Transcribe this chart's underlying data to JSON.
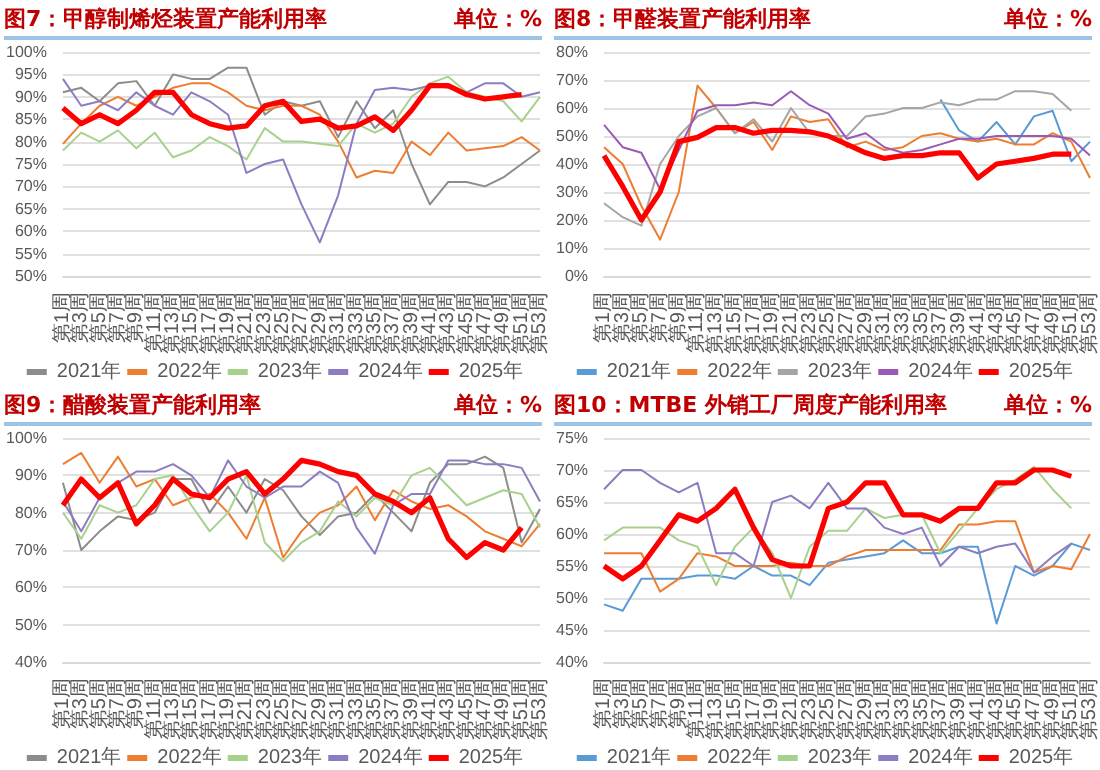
{
  "chart_data": [
    {
      "type": "line",
      "title": "图7：甲醇制烯烃装置产能利用率",
      "annotations": [
        "单位：%"
      ],
      "categories": [
        "第1周",
        "第3周",
        "第5周",
        "第7周",
        "第9周",
        "第11周",
        "第13周",
        "第15周",
        "第17周",
        "第19周",
        "第21周",
        "第23周",
        "第25周",
        "第27周",
        "第29周",
        "第31周",
        "第33周",
        "第35周",
        "第37周",
        "第39周",
        "第41周",
        "第43周",
        "第45周",
        "第47周",
        "第49周",
        "第51周",
        "第53周"
      ],
      "series": [
        {
          "name": "2021年",
          "color": "#8c8c8c",
          "values": [
            91,
            92,
            89,
            93,
            93.5,
            88,
            95,
            94,
            94,
            96.5,
            96.5,
            86,
            89,
            88,
            89,
            81,
            89,
            83,
            87,
            75,
            66,
            71,
            71,
            70,
            72,
            75,
            78
          ]
        },
        {
          "name": "2022年",
          "color": "#ed7d31",
          "values": [
            79.5,
            84,
            88,
            90,
            88,
            90,
            92,
            93,
            93,
            91,
            88,
            87,
            88,
            88,
            86,
            80,
            72,
            73.5,
            73,
            80,
            77,
            82,
            78,
            78.5,
            79,
            81,
            78
          ]
        },
        {
          "name": "2023年",
          "color": "#a9d18e",
          "values": [
            78,
            82,
            80,
            82.5,
            78.5,
            82,
            76.5,
            78,
            81,
            79,
            76,
            83,
            80,
            80,
            79.5,
            79,
            84,
            82,
            84,
            90,
            93,
            94.5,
            91,
            90,
            89,
            84.5,
            90
          ]
        },
        {
          "name": "2024年",
          "color": "#8e7cc3",
          "values": [
            94,
            88,
            89,
            87,
            91,
            88,
            86,
            91,
            89,
            86,
            73,
            75,
            76,
            66,
            57.5,
            68,
            84,
            91.5,
            92,
            91.5,
            92.5,
            92,
            91,
            93,
            93,
            90,
            91
          ]
        },
        {
          "name": "2025年",
          "color": "#ff0000",
          "values": [
            87.5,
            84,
            86,
            84,
            87,
            91,
            91,
            86,
            84,
            83,
            83.5,
            88,
            89,
            84.5,
            85,
            83,
            83.5,
            85.5,
            82.5,
            87,
            92.5,
            92.5,
            90.5,
            89.5,
            90,
            90.5,
            null
          ]
        }
      ],
      "ylim": [
        50,
        100
      ],
      "yticks": [
        {
          "value": 50,
          "label": "50%"
        },
        {
          "value": 55,
          "label": "55%"
        },
        {
          "value": 60,
          "label": "60%"
        },
        {
          "value": 65,
          "label": "65%"
        },
        {
          "value": 70,
          "label": "70%"
        },
        {
          "value": 75,
          "label": "75%"
        },
        {
          "value": 80,
          "label": "80%"
        },
        {
          "value": 85,
          "label": "85%"
        },
        {
          "value": 90,
          "label": "90%"
        },
        {
          "value": 95,
          "label": "95%"
        },
        {
          "value": 100,
          "label": "100%"
        }
      ],
      "grid": "y",
      "legend": "bottom",
      "marker": "none"
    },
    {
      "type": "line",
      "title": "图8：甲醛装置产能利用率",
      "annotations": [
        "单位：%"
      ],
      "categories": [
        "第1周",
        "第3周",
        "第5周",
        "第7周",
        "第9周",
        "第11周",
        "第13周",
        "第15周",
        "第17周",
        "第19周",
        "第21周",
        "第23周",
        "第25周",
        "第27周",
        "第29周",
        "第31周",
        "第33周",
        "第35周",
        "第37周",
        "第39周",
        "第41周",
        "第43周",
        "第45周",
        "第47周",
        "第49周",
        "第51周",
        "第53周"
      ],
      "series": [
        {
          "name": "2021年",
          "color": "#5b9bd5",
          "values": [
            null,
            null,
            null,
            null,
            null,
            null,
            null,
            null,
            null,
            null,
            null,
            null,
            null,
            null,
            null,
            null,
            null,
            null,
            63,
            52,
            48,
            55,
            47,
            57,
            59,
            41,
            48
          ]
        },
        {
          "name": "2022年",
          "color": "#ed7d31",
          "values": [
            46,
            40,
            25,
            13,
            30,
            68,
            60,
            51,
            55,
            45,
            57,
            55,
            56,
            46,
            48,
            45,
            46,
            50,
            51,
            49,
            48,
            49,
            47,
            47,
            51,
            48,
            35
          ]
        },
        {
          "name": "2023年",
          "color": "#a5a5a5",
          "values": [
            26,
            21,
            18,
            40,
            50,
            57,
            60,
            51,
            56,
            48,
            60,
            51,
            50,
            50,
            57,
            58,
            60,
            60,
            62,
            61,
            63,
            63,
            66,
            66,
            65,
            59,
            null
          ]
        },
        {
          "name": "2024年",
          "color": "#9b59b6",
          "values": [
            54,
            46,
            44,
            31,
            45,
            59,
            61,
            61,
            62,
            61,
            66,
            61,
            58,
            49,
            51,
            46,
            44,
            45,
            47,
            49,
            49,
            50,
            50,
            50,
            50,
            49,
            43
          ]
        },
        {
          "name": "2025年",
          "color": "#ff0000",
          "values": [
            43,
            32,
            20,
            30,
            48,
            49.5,
            53,
            53,
            51,
            52,
            52,
            51.5,
            50,
            47,
            44,
            42,
            43,
            43,
            44,
            44,
            35,
            40,
            41,
            42,
            43.5,
            43.5,
            null
          ]
        }
      ],
      "ylim": [
        0,
        80
      ],
      "yticks": [
        {
          "value": 0,
          "label": "0%"
        },
        {
          "value": 10,
          "label": "10%"
        },
        {
          "value": 20,
          "label": "20%"
        },
        {
          "value": 30,
          "label": "30%"
        },
        {
          "value": 40,
          "label": "40%"
        },
        {
          "value": 50,
          "label": "50%"
        },
        {
          "value": 60,
          "label": "60%"
        },
        {
          "value": 70,
          "label": "70%"
        },
        {
          "value": 80,
          "label": "80%"
        }
      ],
      "grid": "y",
      "legend": "bottom",
      "marker": "none"
    },
    {
      "type": "line",
      "title": "图9：醋酸装置产能利用率",
      "annotations": [
        "单位：%"
      ],
      "categories": [
        "第1周",
        "第3周",
        "第5周",
        "第7周",
        "第9周",
        "第11周",
        "第13周",
        "第15周",
        "第17周",
        "第19周",
        "第21周",
        "第23周",
        "第25周",
        "第27周",
        "第29周",
        "第31周",
        "第33周",
        "第35周",
        "第37周",
        "第39周",
        "第41周",
        "第43周",
        "第45周",
        "第47周",
        "第49周",
        "第51周",
        "第53周"
      ],
      "series": [
        {
          "name": "2021年",
          "color": "#8c8c8c",
          "values": [
            88,
            70,
            75,
            79,
            78,
            80,
            89,
            89,
            80,
            87,
            80,
            89,
            86,
            79,
            74,
            79,
            80,
            85,
            80,
            75,
            88,
            93,
            93,
            95,
            92,
            72,
            81
          ]
        },
        {
          "name": "2022年",
          "color": "#ed7d31",
          "values": [
            93,
            96,
            88,
            95,
            87,
            89,
            82,
            84,
            85,
            80,
            73,
            84,
            68,
            75,
            80,
            82,
            87,
            78,
            86,
            83,
            81,
            82,
            79,
            75,
            73,
            71,
            77
          ]
        },
        {
          "name": "2023年",
          "color": "#a9d18e",
          "values": [
            80,
            73,
            82,
            80,
            82,
            89,
            90,
            82,
            75,
            80,
            90,
            72,
            67,
            72,
            75,
            83,
            79,
            84,
            82,
            90,
            92,
            87,
            82,
            84,
            86,
            85,
            76
          ]
        },
        {
          "name": "2024年",
          "color": "#8e7cc3",
          "values": [
            83,
            75,
            84,
            88,
            91,
            91,
            93,
            90,
            84,
            94,
            87,
            84,
            87,
            87,
            91,
            88,
            76,
            69,
            82,
            85,
            85,
            94,
            94,
            93,
            93,
            92,
            83
          ]
        },
        {
          "name": "2025年",
          "color": "#ff0000",
          "values": [
            82,
            89,
            84,
            88,
            77,
            82,
            89,
            85,
            84,
            89,
            91,
            85,
            89,
            94,
            93,
            91,
            90,
            85,
            83,
            80,
            84,
            73,
            68,
            72,
            70,
            76,
            null
          ]
        }
      ],
      "ylim": [
        40,
        100
      ],
      "yticks": [
        {
          "value": 40,
          "label": "40%"
        },
        {
          "value": 50,
          "label": "50%"
        },
        {
          "value": 60,
          "label": "60%"
        },
        {
          "value": 70,
          "label": "70%"
        },
        {
          "value": 80,
          "label": "80%"
        },
        {
          "value": 90,
          "label": "90%"
        },
        {
          "value": 100,
          "label": "100%"
        }
      ],
      "grid": "y",
      "legend": "bottom",
      "marker": "none"
    },
    {
      "type": "line",
      "title": "图10：MTBE 外销工厂周度产能利用率",
      "annotations": [
        "单位：%"
      ],
      "categories": [
        "第1周",
        "第3周",
        "第5周",
        "第7周",
        "第9周",
        "第11周",
        "第13周",
        "第15周",
        "第17周",
        "第19周",
        "第21周",
        "第23周",
        "第25周",
        "第27周",
        "第29周",
        "第31周",
        "第33周",
        "第35周",
        "第37周",
        "第39周",
        "第41周",
        "第43周",
        "第45周",
        "第47周",
        "第49周",
        "第51周",
        "第53周"
      ],
      "series": [
        {
          "name": "2021年",
          "color": "#5b9bd5",
          "values": [
            49,
            48,
            53,
            53,
            53,
            53.5,
            53.5,
            53,
            55,
            53.5,
            53.5,
            52,
            55.5,
            56,
            56.5,
            57,
            59,
            57,
            57,
            58,
            58,
            46,
            55,
            53.5,
            55,
            58.5,
            57.5
          ]
        },
        {
          "name": "2022年",
          "color": "#ed7d31",
          "values": [
            57,
            57,
            57,
            51,
            53,
            57,
            56.5,
            55,
            55,
            55,
            55.5,
            55,
            55,
            56.5,
            57.5,
            57.5,
            57.5,
            57.5,
            57.5,
            61.5,
            61.5,
            62,
            62,
            54,
            55,
            54.5,
            60
          ]
        },
        {
          "name": "2023年",
          "color": "#a9d18e",
          "values": [
            59,
            61,
            61,
            61,
            59,
            58,
            52,
            58,
            61,
            57,
            50,
            58,
            60.5,
            60.5,
            64,
            62.5,
            63,
            63,
            57,
            60.5,
            64,
            67,
            68.5,
            70.5,
            67,
            64,
            null
          ]
        },
        {
          "name": "2024年",
          "color": "#8e7cc3",
          "values": [
            67,
            70,
            70,
            68,
            66.5,
            68,
            57,
            57,
            55,
            65,
            66,
            64,
            68,
            64,
            64,
            61,
            60,
            61,
            55,
            58,
            57,
            58,
            58.5,
            54,
            56.5,
            58.5,
            null
          ]
        },
        {
          "name": "2025年",
          "color": "#ff0000",
          "values": [
            55,
            53,
            55,
            59,
            63,
            62,
            64,
            67,
            61,
            56,
            55,
            55,
            64,
            65,
            68,
            68,
            63,
            63,
            62,
            64,
            64,
            68,
            68,
            70,
            70,
            69,
            null
          ]
        }
      ],
      "ylim": [
        40,
        75
      ],
      "yticks": [
        {
          "value": 40,
          "label": "40%"
        },
        {
          "value": 45,
          "label": "45%"
        },
        {
          "value": 50,
          "label": "50%"
        },
        {
          "value": 55,
          "label": "55%"
        },
        {
          "value": 60,
          "label": "60%"
        },
        {
          "value": 65,
          "label": "65%"
        },
        {
          "value": 70,
          "label": "70%"
        },
        {
          "value": 75,
          "label": "75%"
        }
      ],
      "grid": "y",
      "legend": "bottom",
      "marker": "none"
    }
  ]
}
